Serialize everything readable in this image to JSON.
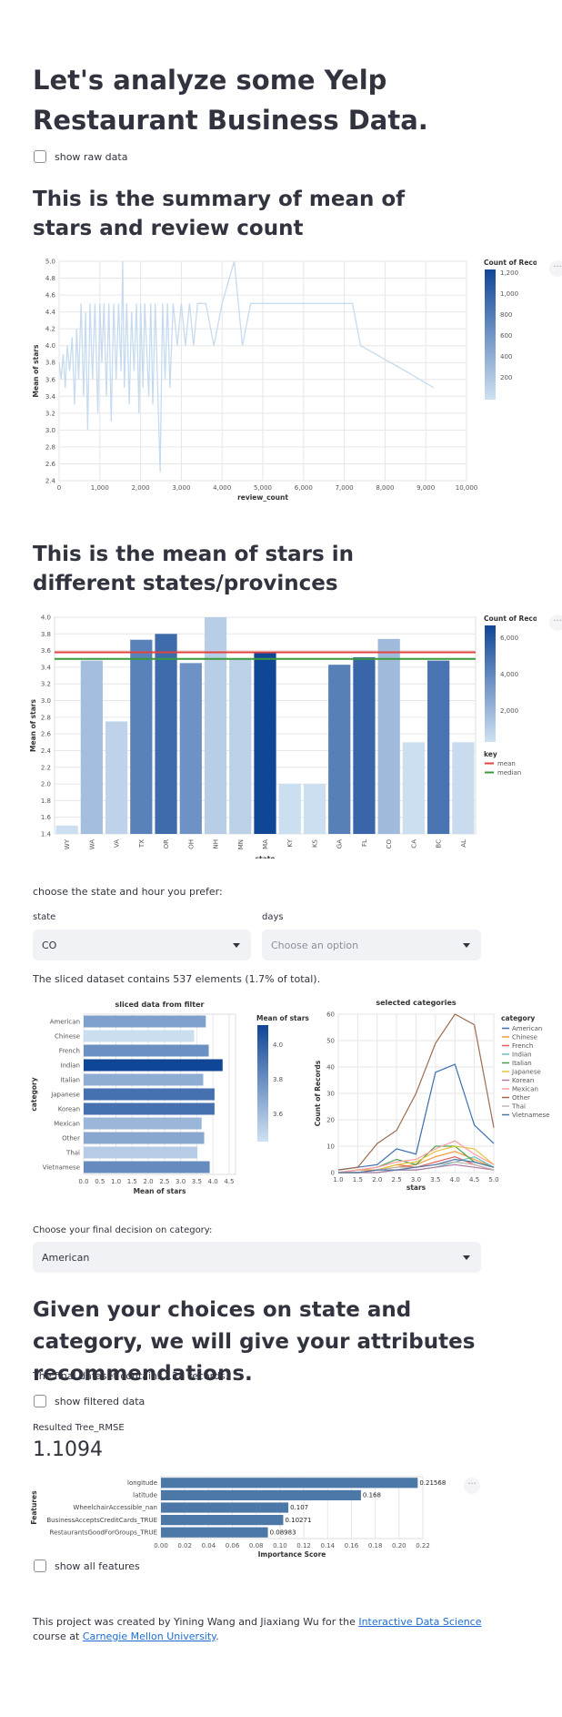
{
  "title": "Let's analyze some Yelp Restaurant Business Data.",
  "raw_checkbox": "show raw data",
  "sec1": "This is the summary of mean of stars and review count",
  "chart1": {
    "type": "line",
    "xlabel": "review_count",
    "ylabel": "Mean of stars",
    "xticks": [
      "0",
      "1,000",
      "2,000",
      "3,000",
      "4,000",
      "5,000",
      "6,000",
      "7,000",
      "8,000",
      "9,000",
      "10,000"
    ],
    "yticks": [
      "2.4",
      "2.6",
      "2.8",
      "3.0",
      "3.2",
      "3.4",
      "3.6",
      "3.8",
      "4.0",
      "4.2",
      "4.4",
      "4.6",
      "4.8",
      "5.0"
    ],
    "legend_title": "Count of Records",
    "legend_ticks": [
      "1,200",
      "1,000",
      "800",
      "600",
      "400",
      "200"
    ],
    "xlim": [
      0,
      10000
    ],
    "ylim": [
      2.4,
      5.0
    ],
    "points": [
      [
        0,
        3.8
      ],
      [
        50,
        3.6
      ],
      [
        100,
        3.9
      ],
      [
        150,
        3.5
      ],
      [
        200,
        4.0
      ],
      [
        260,
        3.7
      ],
      [
        320,
        4.1
      ],
      [
        380,
        3.3
      ],
      [
        430,
        4.2
      ],
      [
        480,
        3.6
      ],
      [
        540,
        4.5
      ],
      [
        600,
        3.4
      ],
      [
        650,
        4.4
      ],
      [
        700,
        3.0
      ],
      [
        760,
        4.5
      ],
      [
        820,
        3.6
      ],
      [
        880,
        4.5
      ],
      [
        950,
        3.2
      ],
      [
        1000,
        4.5
      ],
      [
        1050,
        3.8
      ],
      [
        1100,
        4.5
      ],
      [
        1160,
        3.4
      ],
      [
        1220,
        4.5
      ],
      [
        1280,
        3.1
      ],
      [
        1340,
        4.5
      ],
      [
        1400,
        3.6
      ],
      [
        1460,
        4.5
      ],
      [
        1520,
        3.7
      ],
      [
        1560,
        5.0
      ],
      [
        1600,
        3.5
      ],
      [
        1660,
        4.5
      ],
      [
        1720,
        3.3
      ],
      [
        1780,
        4.4
      ],
      [
        1840,
        3.7
      ],
      [
        1900,
        4.5
      ],
      [
        1960,
        3.2
      ],
      [
        2000,
        4.5
      ],
      [
        2060,
        3.5
      ],
      [
        2100,
        4.5
      ],
      [
        2200,
        3.4
      ],
      [
        2250,
        4.5
      ],
      [
        2300,
        3.3
      ],
      [
        2360,
        4.5
      ],
      [
        2420,
        3.5
      ],
      [
        2480,
        2.5
      ],
      [
        2540,
        4.5
      ],
      [
        2600,
        3.6
      ],
      [
        2660,
        4.5
      ],
      [
        2720,
        3.5
      ],
      [
        2800,
        4.5
      ],
      [
        2900,
        4.0
      ],
      [
        3000,
        4.5
      ],
      [
        3100,
        4.0
      ],
      [
        3200,
        4.5
      ],
      [
        3300,
        4.0
      ],
      [
        3400,
        4.5
      ],
      [
        3600,
        4.5
      ],
      [
        3800,
        4.0
      ],
      [
        4000,
        4.5
      ],
      [
        4300,
        5.0
      ],
      [
        4500,
        4.0
      ],
      [
        4700,
        4.5
      ],
      [
        5000,
        4.5
      ],
      [
        6000,
        4.5
      ],
      [
        7200,
        4.5
      ],
      [
        7400,
        4.0
      ],
      [
        8500,
        3.7
      ],
      [
        9200,
        3.5
      ]
    ]
  },
  "sec2": "This is the mean of stars in different states/provinces",
  "chart2": {
    "type": "bar",
    "xlabel": "state",
    "ylabel": "Mean of stars",
    "categories": [
      "WY",
      "WA",
      "VA",
      "TX",
      "OR",
      "OH",
      "NH",
      "MN",
      "MA",
      "KY",
      "KS",
      "GA",
      "FL",
      "CO",
      "CA",
      "BC",
      "AL"
    ],
    "values": [
      1.5,
      3.48,
      2.75,
      3.73,
      3.8,
      3.45,
      4.0,
      3.5,
      3.58,
      2.0,
      2.0,
      3.43,
      3.52,
      3.74,
      2.5,
      3.48,
      2.5
    ],
    "counts": [
      100,
      1500,
      600,
      4100,
      5100,
      3400,
      800,
      700,
      6700,
      100,
      100,
      4200,
      5300,
      1700,
      100,
      4700,
      200
    ],
    "ylim": [
      1.4,
      4.0
    ],
    "yticks": [
      "1.4",
      "1.6",
      "1.8",
      "2.0",
      "2.2",
      "2.4",
      "2.6",
      "2.8",
      "3.0",
      "3.2",
      "3.4",
      "3.6",
      "3.8",
      "4.0"
    ],
    "mean": 3.58,
    "median": 3.5,
    "legend_title": "Count of Records",
    "legend_ticks": [
      "6,000",
      "4,000",
      "2,000"
    ],
    "key_title": "key",
    "key_items": [
      "mean",
      "median"
    ],
    "colors": {
      "mean": "#e4423c",
      "median": "#3a9a3a"
    }
  },
  "choose_text": "choose the state and hour you prefer:",
  "state_label": "state",
  "state_value": "CO",
  "days_label": "days",
  "days_placeholder": "Choose an option",
  "sliced_text": "The sliced dataset contains 537 elements (1.7% of total).",
  "chart3": {
    "type": "bar",
    "title": "sliced data from filter",
    "xlabel": "Mean of stars",
    "ylabel": "category",
    "categories": [
      "American",
      "Chinese",
      "French",
      "Indian",
      "Italian",
      "Japanese",
      "Korean",
      "Mexican",
      "Other",
      "Thai",
      "Vietnamese"
    ],
    "values": [
      3.78,
      3.42,
      3.87,
      4.3,
      3.7,
      4.05,
      4.05,
      3.65,
      3.73,
      3.52,
      3.9
    ],
    "xticks": [
      "0.0",
      "0.5",
      "1.0",
      "1.5",
      "2.0",
      "2.5",
      "3.0",
      "3.5",
      "4.0",
      "4.5"
    ],
    "legend_title": "Mean of stars",
    "legend_ticks": [
      "4.0",
      "3.8",
      "3.6"
    ]
  },
  "chart4": {
    "type": "line",
    "title": "selected categories",
    "xlabel": "stars",
    "ylabel": "Count of Records",
    "x": [
      1.0,
      1.5,
      2.0,
      2.5,
      3.0,
      3.5,
      4.0,
      4.5,
      5.0
    ],
    "xticks": [
      "1.0",
      "1.5",
      "2.0",
      "2.5",
      "3.0",
      "3.5",
      "4.0",
      "4.5",
      "5.0"
    ],
    "yticks": [
      "0",
      "10",
      "20",
      "30",
      "40",
      "50",
      "60"
    ],
    "legend_title": "category",
    "series": [
      {
        "name": "American",
        "color": "#3b6fb0",
        "values": [
          1,
          2,
          3,
          9,
          7,
          38,
          41,
          18,
          11
        ]
      },
      {
        "name": "Chinese",
        "color": "#f29a3a",
        "values": [
          0,
          1,
          1,
          2,
          3,
          6,
          8,
          5,
          2
        ]
      },
      {
        "name": "French",
        "color": "#e35a5a",
        "values": [
          0,
          0,
          1,
          3,
          2,
          4,
          6,
          3,
          1
        ]
      },
      {
        "name": "Indian",
        "color": "#6bbec0",
        "values": [
          0,
          0,
          0,
          1,
          1,
          2,
          4,
          6,
          2
        ]
      },
      {
        "name": "Italian",
        "color": "#4ea04e",
        "values": [
          0,
          1,
          2,
          5,
          3,
          10,
          10,
          4,
          2
        ]
      },
      {
        "name": "Japanese",
        "color": "#e3c53a",
        "values": [
          0,
          0,
          1,
          3,
          4,
          8,
          10,
          9,
          3
        ]
      },
      {
        "name": "Korean",
        "color": "#b07aa1",
        "values": [
          0,
          0,
          0,
          1,
          1,
          2,
          3,
          2,
          1
        ]
      },
      {
        "name": "Mexican",
        "color": "#ff9da6",
        "values": [
          0,
          1,
          2,
          4,
          5,
          9,
          12,
          7,
          3
        ]
      },
      {
        "name": "Other",
        "color": "#9c6b4e",
        "values": [
          1,
          2,
          11,
          16,
          30,
          49,
          60,
          56,
          17
        ]
      },
      {
        "name": "Thai",
        "color": "#c0b2ae",
        "values": [
          0,
          0,
          1,
          2,
          2,
          3,
          4,
          3,
          1
        ]
      },
      {
        "name": "Vietnamese",
        "color": "#4c78a8",
        "values": [
          0,
          0,
          1,
          1,
          2,
          3,
          5,
          4,
          2
        ]
      }
    ]
  },
  "final_label": "Choose your final decision on category:",
  "final_value": "American",
  "sec3": "Given your choices on state and category, we will give your attributes recommendations.",
  "final_dataset_text": "The final dataset contains 128 records.",
  "filtered_checkbox": "show filtered data",
  "rmse_label": "Resulted Tree_RMSE",
  "rmse_value": "1.1094",
  "chart5": {
    "type": "bar",
    "xlabel": "Importance Score",
    "ylabel": "Features",
    "categories": [
      "longitude",
      "latitude",
      "WheelchairAccessible_nan",
      "BusinessAcceptsCreditCards_TRUE",
      "RestaurantsGoodForGroups_TRUE"
    ],
    "values": [
      0.21568,
      0.168,
      0.107,
      0.10271,
      0.08983
    ],
    "value_labels": [
      "0.21568",
      "0.168",
      "0.107",
      "0.10271",
      "0.08983"
    ],
    "xticks": [
      "0.00",
      "0.02",
      "0.04",
      "0.06",
      "0.08",
      "0.10",
      "0.12",
      "0.14",
      "0.16",
      "0.18",
      "0.20",
      "0.22"
    ],
    "xlim": [
      0,
      0.22
    ],
    "color": "#4c78a8"
  },
  "all_features_checkbox": "show all features",
  "footer": {
    "pre": "This project was created by Yining Wang and Jiaxiang Wu for the ",
    "link1": "Interactive Data Science",
    "mid": " course at ",
    "link2": "Carnegie Mellon University",
    "post": "."
  },
  "menu_icon": "more-horizontal-icon"
}
